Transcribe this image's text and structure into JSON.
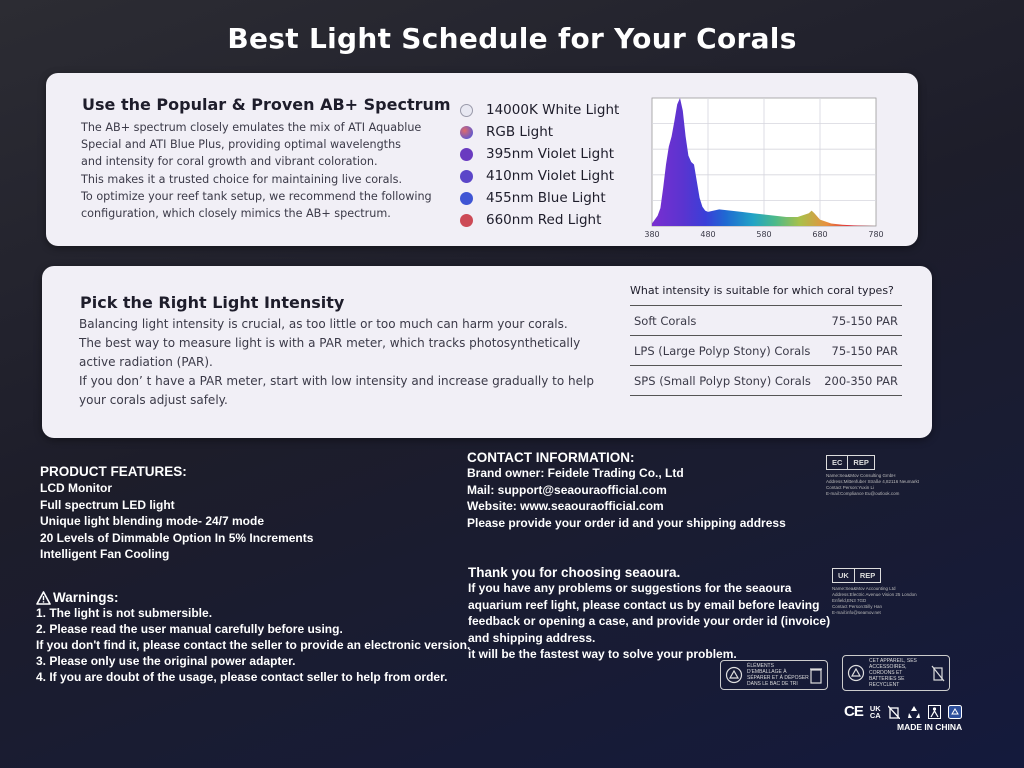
{
  "title": "Best Light Schedule for Your Corals",
  "spectrum_card": {
    "heading": "Use the Popular & Proven AB+ Spectrum",
    "paragraph_lines": [
      "The AB+ spectrum closely emulates the mix of ATI Aquablue",
      "Special and ATI Blue Plus, providing optimal wavelengths",
      "and intensity for coral growth and vibrant coloration.",
      "This makes it a trusted choice for maintaining live corals.",
      "To optimize your reef tank setup, we recommend the following",
      "configuration, which closely mimics the AB+ spectrum."
    ],
    "legend": [
      {
        "label": "14000K White Light",
        "color": "#e8e8f2"
      },
      {
        "label": "RGB Light",
        "color": "#9a50a8"
      },
      {
        "label": "395nm Violet Light",
        "color": "#6a3bc0"
      },
      {
        "label": "410nm Violet Light",
        "color": "#5b46c8"
      },
      {
        "label": "455nm Blue Light",
        "color": "#3f55d4"
      },
      {
        "label": "660nm Red Light",
        "color": "#cc4a56"
      }
    ]
  },
  "chart_data": {
    "type": "area",
    "title": "",
    "xlabel": "",
    "ylabel": "",
    "xlim": [
      380,
      780
    ],
    "x_ticks": [
      380,
      480,
      580,
      680,
      780
    ],
    "grid": true,
    "x": [
      370,
      380,
      390,
      395,
      400,
      405,
      410,
      415,
      420,
      425,
      430,
      435,
      440,
      445,
      450,
      455,
      460,
      465,
      470,
      475,
      480,
      490,
      500,
      520,
      540,
      560,
      580,
      600,
      620,
      640,
      660,
      665,
      670,
      680,
      700,
      720,
      740,
      780
    ],
    "y": [
      0,
      0.02,
      0.08,
      0.14,
      0.3,
      0.48,
      0.62,
      0.7,
      0.82,
      0.95,
      1.0,
      0.9,
      0.7,
      0.55,
      0.5,
      0.48,
      0.35,
      0.22,
      0.15,
      0.12,
      0.11,
      0.12,
      0.13,
      0.12,
      0.11,
      0.1,
      0.09,
      0.08,
      0.07,
      0.07,
      0.1,
      0.12,
      0.1,
      0.05,
      0.02,
      0.01,
      0.005,
      0
    ]
  },
  "intensity_card": {
    "heading": "Pick the Right Light Intensity",
    "paragraph_lines": [
      "Balancing light intensity is crucial, as too little or too much can harm your corals.",
      "The best way to measure light is with a PAR meter, which tracks photosynthetically",
      "active radiation (PAR).",
      "If you don’ t have a PAR meter, start with low intensity and increase gradually to help",
      "your corals adjust safely."
    ],
    "table": {
      "question": "What intensity is suitable for which coral types?",
      "rows": [
        {
          "coral": "Soft Corals",
          "par": "75-150 PAR"
        },
        {
          "coral": "LPS (Large Polyp Stony) Corals",
          "par": "75-150 PAR"
        },
        {
          "coral": "SPS (Small Polyp Stony) Corals",
          "par": "200-350 PAR"
        }
      ]
    }
  },
  "features": {
    "heading": "PRODUCT FEATURES:",
    "items": [
      "LCD Monitor",
      "Full spectrum LED light",
      "Unique light blending mode- 24/7 mode",
      "20 Levels of Dimmable Option In 5% Increments",
      "Intelligent Fan Cooling"
    ]
  },
  "warnings": {
    "heading": "Warnings:",
    "items": [
      "1. The light is not submersible.",
      "2. Please read the user manual carefully before using.",
      "If you don't find it, please contact the seller to provide an electronic version.",
      "3. Please only use the original power adapter.",
      "4. If you are doubt of the usage, please contact seller to help from order."
    ]
  },
  "contact": {
    "heading": "CONTACT INFORMATION:",
    "lines": [
      "Brand owner: Feidele Trading Co., Ltd",
      "Mail: support@seaouraofficial.com",
      "Website: www.seaouraofficial.com",
      "Please provide your order id and your shipping address"
    ]
  },
  "thanks": {
    "heading": "Thank you for choosing seaoura.",
    "lines": [
      "If you have any problems or suggestions for the seaoura",
      "aquarium reef light, please contact us by email before leaving",
      "feedback or opening a case, and provide your order id (invoice)",
      "and shipping address.",
      "it will be the fastest way to solve your problem."
    ]
  },
  "ec_rep": {
    "tags": [
      "EC",
      "REP"
    ],
    "lines": [
      "Name:Sea&Mov Consulting GmbH",
      "Address:Mittenfuber Straße 4,82116 Neumarkt",
      "Contact Person:Yuxin Li",
      "E-mail:Compliance Eu@outlook.com"
    ]
  },
  "uk_rep": {
    "tags": [
      "UK",
      "REP"
    ],
    "lines": [
      "Name:Sea&Mov Accounting Ltd",
      "Address:Electric Avenue Vision 25 London",
      "Enfield,EN3 7GD",
      "Contact Person:Billy Han",
      "E-mail:info@seamov.net"
    ]
  },
  "recycling": {
    "label_1": "ÉLÉMENTS D'EMBALLAGE À SÉPARER ET À DÉPOSER DANS LE BAC DE TRI",
    "label_2": "CET APPAREIL, SES ACCESSOIRES, CORDONS ET BATTERIES SE RECYCLENT"
  },
  "marks": {
    "ce": "CE",
    "ukca_top": "UK",
    "ukca_bottom": "CA",
    "made_in": "MADE IN CHINA"
  }
}
